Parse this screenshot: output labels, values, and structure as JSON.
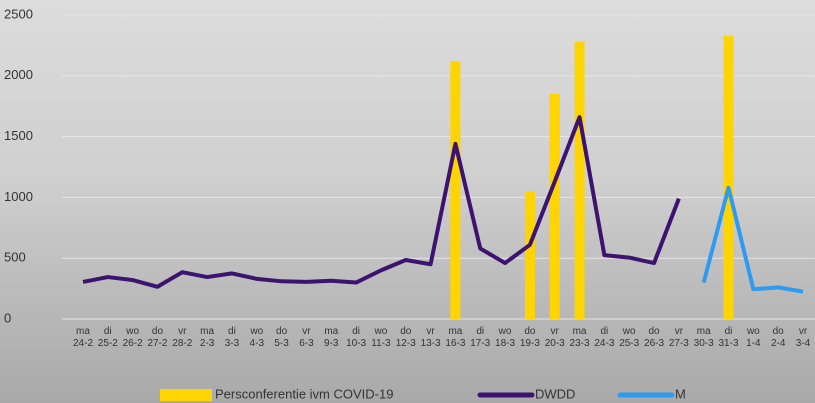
{
  "chart_data": {
    "type": "combo",
    "categories": [
      "ma 24-2",
      "di 25-2",
      "wo 26-2",
      "do 27-2",
      "vr 28-2",
      "ma 2-3",
      "di 3-3",
      "wo 4-3",
      "do 5-3",
      "vr 6-3",
      "ma 9-3",
      "di 10-3",
      "wo 11-3",
      "do 12-3",
      "vr 13-3",
      "ma 16-3",
      "di 17-3",
      "wo 18-3",
      "do 19-3",
      "vr 20-3",
      "ma 23-3",
      "di 24-3",
      "wo 25-3",
      "do 26-3",
      "vr 27-3",
      "ma 30-3",
      "di 31-3",
      "wo 1-4",
      "do 2-4",
      "vr 3-4"
    ],
    "series": [
      {
        "name": "Persconferentie ivm COVID-19",
        "type": "bar",
        "color": "#ffd400",
        "values": [
          null,
          null,
          null,
          null,
          null,
          null,
          null,
          null,
          null,
          null,
          null,
          null,
          null,
          null,
          null,
          2120,
          null,
          null,
          1050,
          1850,
          2280,
          null,
          null,
          null,
          null,
          null,
          2330,
          null,
          null,
          null
        ]
      },
      {
        "name": "DWDD",
        "type": "line",
        "color": "#3c1470",
        "values": [
          305,
          345,
          320,
          265,
          385,
          345,
          375,
          330,
          310,
          305,
          315,
          300,
          400,
          485,
          450,
          1440,
          580,
          460,
          610,
          1130,
          1660,
          525,
          505,
          460,
          990,
          null,
          null,
          null,
          null,
          null
        ]
      },
      {
        "name": "M",
        "type": "line",
        "color": "#2e9bf0",
        "values": [
          null,
          null,
          null,
          null,
          null,
          null,
          null,
          null,
          null,
          null,
          null,
          null,
          null,
          null,
          null,
          null,
          null,
          null,
          null,
          null,
          null,
          null,
          null,
          null,
          null,
          300,
          1080,
          245,
          260,
          225
        ]
      }
    ],
    "ylim": [
      0,
      2500
    ],
    "yticks": [
      0,
      500,
      1000,
      1500,
      2000,
      2500
    ],
    "grid": true,
    "legend": "bottom"
  }
}
